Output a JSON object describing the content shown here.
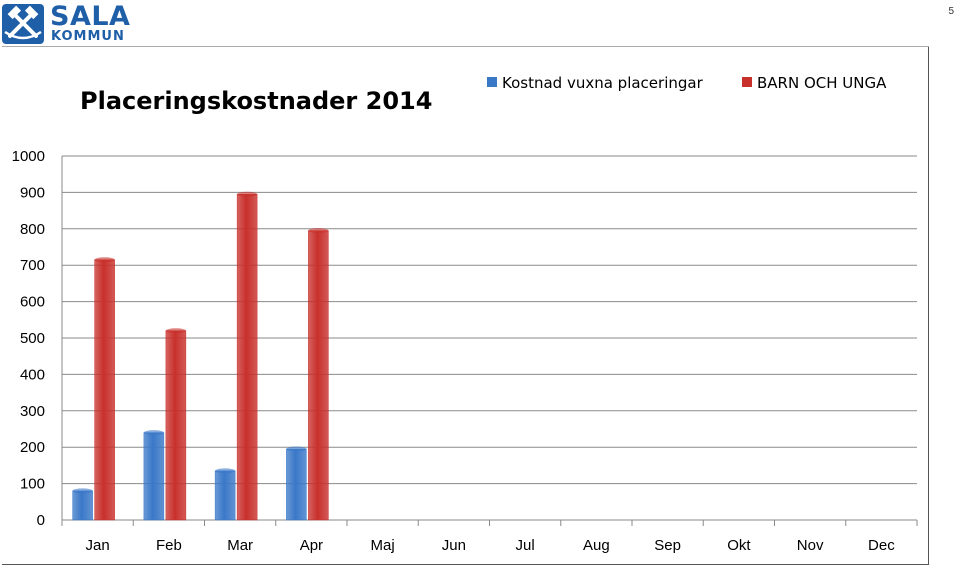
{
  "header": {
    "logo_name": "SALA",
    "logo_sub": "KOMMUN",
    "page_number": "5"
  },
  "colors": {
    "series_1": "#3a78c8",
    "series_2": "#c8302c",
    "grid": "#8a8a8a",
    "logo": "#1f5fa8"
  },
  "chart_data": {
    "type": "bar",
    "title": "Placeringskostnader  2014",
    "xlabel": "",
    "ylabel": "",
    "categories": [
      "Jan",
      "Feb",
      "Mar",
      "Apr",
      "Maj",
      "Jun",
      "Jul",
      "Aug",
      "Sep",
      "Okt",
      "Nov",
      "Dec"
    ],
    "series": [
      {
        "name": "Kostnad vuxna placeringar",
        "values": [
          80,
          240,
          135,
          195,
          null,
          null,
          null,
          null,
          null,
          null,
          null,
          null
        ]
      },
      {
        "name": "BARN OCH UNGA",
        "values": [
          715,
          520,
          895,
          795,
          null,
          null,
          null,
          null,
          null,
          null,
          null,
          null
        ]
      }
    ],
    "ylim": [
      0,
      1000
    ],
    "yticks": [
      0,
      100,
      200,
      300,
      400,
      500,
      600,
      700,
      800,
      900,
      1000
    ],
    "grid": true,
    "legend_position": "top-right"
  }
}
